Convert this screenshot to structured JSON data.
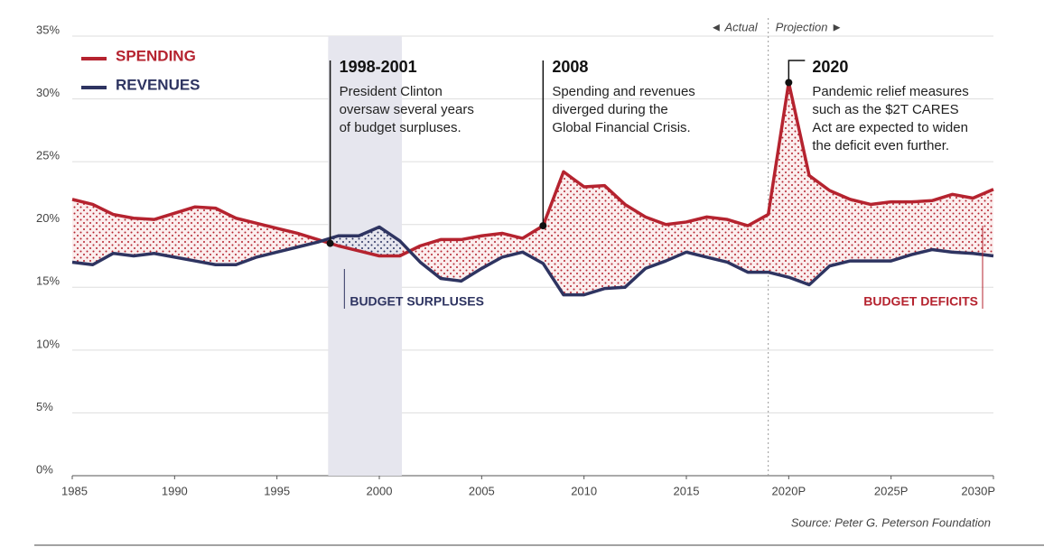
{
  "chart_data": {
    "type": "line",
    "x": [
      1985,
      1986,
      1987,
      1988,
      1989,
      1990,
      1991,
      1992,
      1993,
      1994,
      1995,
      1996,
      1997,
      1998,
      1999,
      2000,
      2001,
      2002,
      2003,
      2004,
      2005,
      2006,
      2007,
      2008,
      2009,
      2010,
      2011,
      2012,
      2013,
      2014,
      2015,
      2016,
      2017,
      2018,
      2019,
      2020,
      2021,
      2022,
      2023,
      2024,
      2025,
      2026,
      2027,
      2028,
      2029,
      2030
    ],
    "series": [
      {
        "name": "SPENDING",
        "color": "#b5232f",
        "values": [
          22.0,
          21.6,
          20.8,
          20.5,
          20.4,
          20.9,
          21.4,
          21.3,
          20.5,
          20.1,
          19.7,
          19.3,
          18.8,
          18.3,
          17.9,
          17.5,
          17.5,
          18.3,
          18.8,
          18.8,
          19.1,
          19.3,
          18.9,
          19.9,
          24.2,
          23.0,
          23.1,
          21.6,
          20.6,
          20.0,
          20.2,
          20.6,
          20.4,
          19.9,
          20.8,
          31.3,
          23.9,
          22.7,
          22.0,
          21.6,
          21.8,
          21.8,
          21.9,
          22.4,
          22.1,
          22.8
        ]
      },
      {
        "name": "REVENUES",
        "color": "#2e3461",
        "values": [
          17.0,
          16.8,
          17.7,
          17.5,
          17.7,
          17.4,
          17.1,
          16.8,
          16.8,
          17.4,
          17.8,
          18.2,
          18.6,
          19.1,
          19.1,
          19.8,
          18.7,
          17.0,
          15.7,
          15.5,
          16.5,
          17.4,
          17.8,
          16.9,
          14.4,
          14.4,
          14.9,
          15.0,
          16.5,
          17.1,
          17.8,
          17.4,
          17.0,
          16.2,
          16.2,
          15.8,
          15.2,
          16.7,
          17.1,
          17.1,
          17.1,
          17.6,
          18.0,
          17.8,
          17.7,
          17.5
        ]
      }
    ],
    "xlim": [
      1985,
      2030
    ],
    "xticks": [
      1985,
      1990,
      1995,
      2000,
      2005,
      2010,
      2015,
      {
        "value": 2020,
        "label": "2020P"
      },
      {
        "value": 2025,
        "label": "2025P"
      },
      {
        "value": 2030,
        "label": "2030P"
      }
    ],
    "ylim": [
      0,
      35
    ],
    "yticks": [
      {
        "value": 0,
        "label": "0%"
      },
      {
        "value": 5,
        "label": "5%"
      },
      {
        "value": 10,
        "label": "10%"
      },
      {
        "value": 15,
        "label": "15%"
      },
      {
        "value": 20,
        "label": "20%"
      },
      {
        "value": 25,
        "label": "25%"
      },
      {
        "value": 30,
        "label": "30%"
      },
      {
        "value": 35,
        "label": "35%"
      }
    ],
    "grid": true,
    "legend": "top-left",
    "highlight_x": [
      1997.5,
      2001.1
    ],
    "projection_start": 2019,
    "actual_label": "◄ Actual",
    "projection_label": "Projection ►",
    "surplus_label": "BUDGET SURPLUSES",
    "deficit_label": "BUDGET DEFICITS",
    "annotations": [
      {
        "title": "1998-2001",
        "x": 1997.6,
        "lines": [
          "President Clinton",
          "oversaw several years",
          "of budget surpluses."
        ]
      },
      {
        "title": "2008",
        "x": 2008,
        "lines": [
          "Spending and revenues",
          "diverged during the",
          "Global Financial Crisis."
        ]
      },
      {
        "title": "2020",
        "x": 2020,
        "lines": [
          "Pandemic relief measures",
          "such as the $2T CARES",
          "Act are expected to widen",
          "the deficit even further."
        ]
      }
    ],
    "source": "Source: Peter G. Peterson Foundation"
  }
}
